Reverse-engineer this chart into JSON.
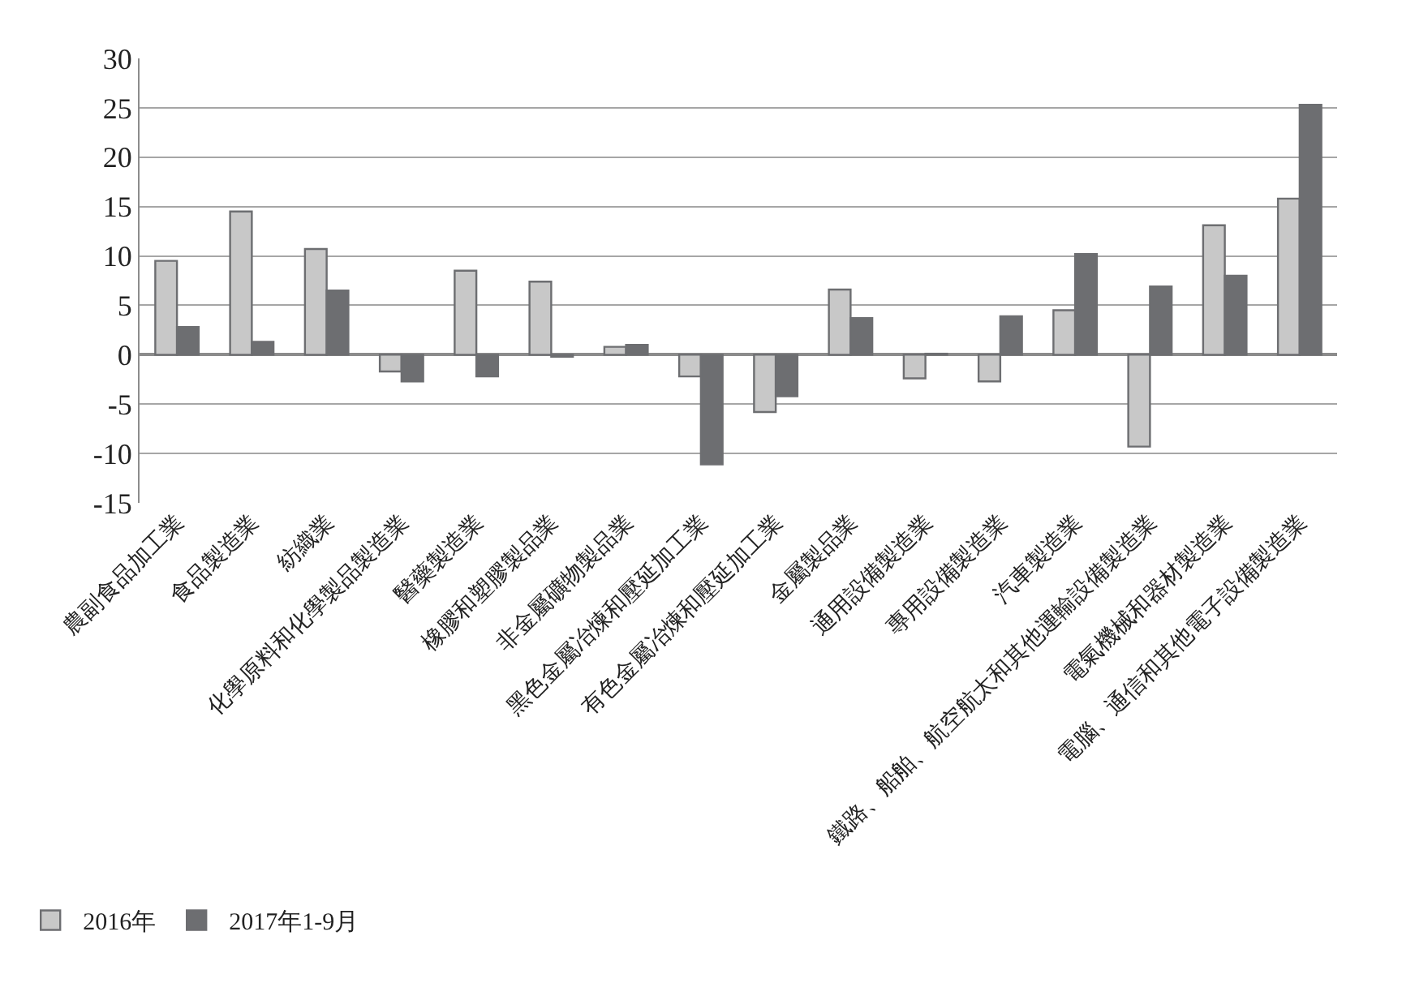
{
  "chart_data": {
    "type": "bar",
    "categories": [
      "農副食品加工業",
      "食品製造業",
      "紡織業",
      "化學原料和化學製品製造業",
      "醫藥製造業",
      "橡膠和塑膠製品業",
      "非金屬礦物製品業",
      "黑色金屬冶煉和壓延加工業",
      "有色金屬冶煉和壓延加工業",
      "金屬製品業",
      "通用設備製造業",
      "專用設備製造業",
      "汽車製造業",
      "鐵路、船舶、航空航太和其他運輸設備製造業",
      "電氣機械和器材製造業",
      "電腦、通信和其他電子設備製造業"
    ],
    "series": [
      {
        "name": "2016年",
        "color": "#c8c8c8",
        "values": [
          9.5,
          14.5,
          10.7,
          -1.7,
          8.5,
          7.4,
          0.8,
          -2.2,
          -5.8,
          6.6,
          -2.4,
          -2.7,
          4.5,
          -9.3,
          13.1,
          15.8
        ]
      },
      {
        "name": "2017年1-9月",
        "color": "#6d6e71",
        "values": [
          2.8,
          1.3,
          6.5,
          -2.7,
          -2.2,
          -0.2,
          1.0,
          -11.1,
          -4.2,
          3.7,
          0.1,
          3.9,
          10.2,
          6.9,
          8.0,
          25.3
        ]
      }
    ],
    "ylim": [
      -15,
      30
    ],
    "yticks": [
      -15,
      -10,
      -5,
      0,
      5,
      10,
      15,
      20,
      25,
      30
    ],
    "grid": "y",
    "legend": "bottom left"
  }
}
